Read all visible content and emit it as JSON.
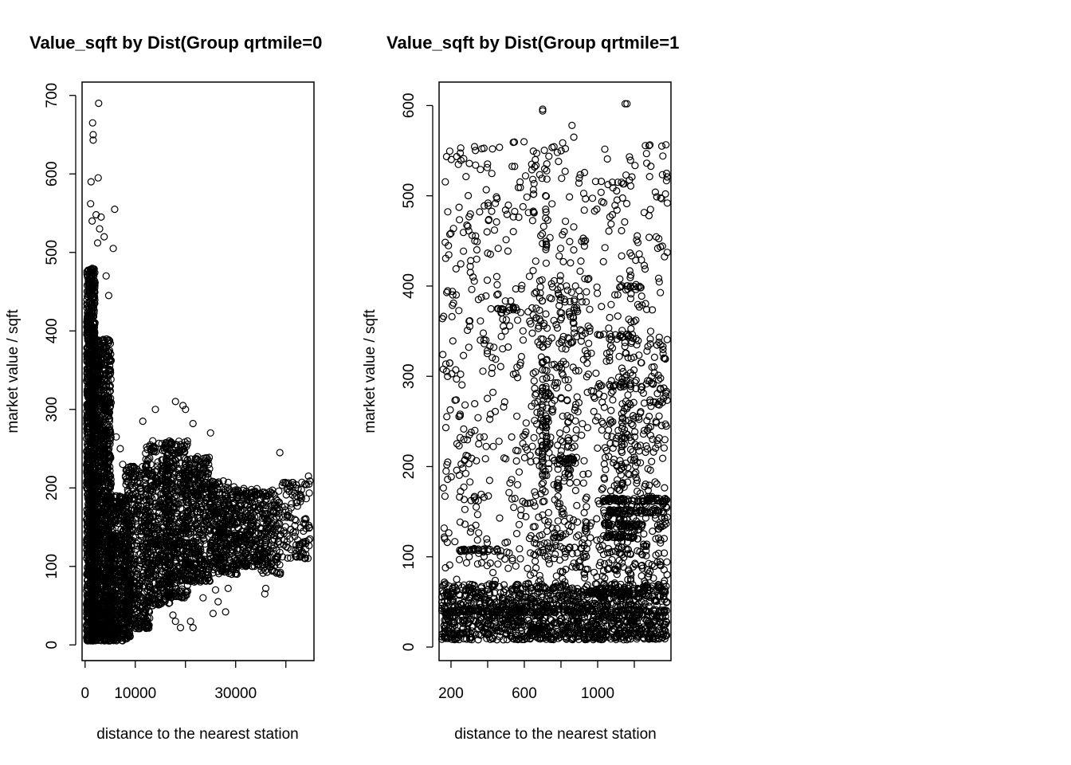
{
  "chart_data": [
    {
      "type": "scatter",
      "title": "Value_sqft by Dist(Group qrtmile=0",
      "xlabel": "distance to the nearest station",
      "ylabel": "market value / sqft",
      "xlim": [
        -600,
        45600
      ],
      "ylim": [
        -20,
        717
      ],
      "xticks": [
        0,
        10000,
        20000,
        30000,
        40000
      ],
      "xtick_labels": [
        "0",
        "10000",
        "",
        "30000",
        ""
      ],
      "yticks": [
        0,
        100,
        200,
        300,
        400,
        500,
        600,
        700
      ],
      "ytick_labels": [
        "0",
        "100",
        "200",
        "300",
        "400",
        "500",
        "600",
        "700"
      ],
      "marker": "open-circle",
      "grid": false,
      "clusters": [
        {
          "x": [
            300,
            2000
          ],
          "y": [
            5,
            480
          ],
          "n": 1300
        },
        {
          "x": [
            1800,
            5200
          ],
          "y": [
            5,
            390
          ],
          "n": 1100
        },
        {
          "x": [
            4500,
            9000
          ],
          "y": [
            5,
            190
          ],
          "n": 600
        },
        {
          "x": [
            8000,
            13000
          ],
          "y": [
            20,
            230
          ],
          "n": 420
        },
        {
          "x": [
            12000,
            17000
          ],
          "y": [
            50,
            260
          ],
          "n": 420
        },
        {
          "x": [
            16000,
            20500
          ],
          "y": [
            60,
            260
          ],
          "n": 420
        },
        {
          "x": [
            20000,
            25000
          ],
          "y": [
            80,
            240
          ],
          "n": 380
        },
        {
          "x": [
            25000,
            30500
          ],
          "y": [
            90,
            210
          ],
          "n": 360
        },
        {
          "x": [
            30500,
            35000
          ],
          "y": [
            100,
            200
          ],
          "n": 220
        },
        {
          "x": [
            35000,
            39000
          ],
          "y": [
            90,
            200
          ],
          "n": 160
        },
        {
          "x": [
            39000,
            44800
          ],
          "y": [
            110,
            210
          ],
          "n": 110
        }
      ],
      "points": [
        [
          2700,
          690
        ],
        [
          1500,
          665
        ],
        [
          1600,
          650
        ],
        [
          1600,
          643
        ],
        [
          2600,
          595
        ],
        [
          1200,
          590
        ],
        [
          1100,
          562
        ],
        [
          5900,
          555
        ],
        [
          2200,
          548
        ],
        [
          3200,
          545
        ],
        [
          1400,
          540
        ],
        [
          2900,
          530
        ],
        [
          3800,
          520
        ],
        [
          2500,
          512
        ],
        [
          5600,
          505
        ],
        [
          4200,
          470
        ],
        [
          4700,
          445
        ],
        [
          6200,
          265
        ],
        [
          7000,
          250
        ],
        [
          7500,
          230
        ],
        [
          11500,
          285
        ],
        [
          14000,
          300
        ],
        [
          18000,
          310
        ],
        [
          19500,
          305
        ],
        [
          20000,
          300
        ],
        [
          21500,
          282
        ],
        [
          25000,
          270
        ],
        [
          38800,
          245
        ],
        [
          44500,
          215
        ],
        [
          43800,
          205
        ],
        [
          44000,
          160
        ],
        [
          43500,
          145
        ],
        [
          43200,
          130
        ],
        [
          44800,
          135
        ],
        [
          42800,
          112
        ],
        [
          36000,
          72
        ],
        [
          35800,
          65
        ],
        [
          17500,
          38
        ],
        [
          18000,
          30
        ],
        [
          19000,
          22
        ],
        [
          21000,
          30
        ],
        [
          21500,
          22
        ],
        [
          26000,
          70
        ],
        [
          28500,
          72
        ],
        [
          25500,
          40
        ],
        [
          28000,
          42
        ],
        [
          23500,
          60
        ],
        [
          26500,
          55
        ],
        [
          13500,
          50
        ],
        [
          12000,
          40
        ],
        [
          15500,
          70
        ],
        [
          16800,
          90
        ],
        [
          14500,
          110
        ]
      ]
    },
    {
      "type": "scatter",
      "title": "Value_sqft by Dist(Group qrtmile=1",
      "xlabel": "distance to the nearest station",
      "ylabel": "market value / sqft",
      "xlim": [
        135,
        1400
      ],
      "ylim": [
        -15,
        626
      ],
      "xticks": [
        200,
        400,
        600,
        800,
        1000,
        1200
      ],
      "xtick_labels": [
        "200",
        "",
        "600",
        "",
        "1000",
        ""
      ],
      "yticks": [
        0,
        100,
        200,
        300,
        400,
        500,
        600
      ],
      "ytick_labels": [
        "0",
        "100",
        "200",
        "300",
        "400",
        "500",
        "600"
      ],
      "marker": "open-circle",
      "grid": false,
      "clusters": [
        {
          "x": [
            150,
            1380
          ],
          "y": [
            8,
            70
          ],
          "n": 1200
        },
        {
          "x": [
            150,
            1380
          ],
          "y": [
            8,
            560
          ],
          "n": 900
        },
        {
          "x": [
            1020,
            1380
          ],
          "y": [
            60,
            350
          ],
          "n": 320
        },
        {
          "x": [
            650,
            950
          ],
          "y": [
            80,
            420
          ],
          "n": 260
        }
      ],
      "rows": [
        {
          "x": [
            240,
            460
          ],
          "y": 107,
          "n": 30
        },
        {
          "x": [
            1030,
            1380
          ],
          "y": 163,
          "n": 60
        },
        {
          "x": [
            1030,
            1380
          ],
          "y": 150,
          "n": 50
        },
        {
          "x": [
            1030,
            1260
          ],
          "y": 135,
          "n": 45
        },
        {
          "x": [
            1030,
            1200
          ],
          "y": 123,
          "n": 30
        },
        {
          "x": [
            880,
            1200
          ],
          "y": 60,
          "n": 50
        },
        {
          "x": [
            150,
            1380
          ],
          "y": 40,
          "n": 120
        },
        {
          "x": [
            760,
            880
          ],
          "y": 208,
          "n": 18
        },
        {
          "x": [
            1000,
            1150
          ],
          "y": 290,
          "n": 14
        },
        {
          "x": [
            1000,
            1200
          ],
          "y": 345,
          "n": 14
        },
        {
          "x": [
            450,
            580
          ],
          "y": 375,
          "n": 16
        },
        {
          "x": [
            1100,
            1240
          ],
          "y": 400,
          "n": 12
        }
      ],
      "columns": [
        {
          "x": 700,
          "y": [
            180,
            310
          ],
          "n": 26
        },
        {
          "x": 720,
          "y": [
            220,
            310
          ],
          "n": 20
        },
        {
          "x": 840,
          "y": [
            190,
            240
          ],
          "n": 12
        },
        {
          "x": 1130,
          "y": [
            100,
            300
          ],
          "n": 22
        },
        {
          "x": 1180,
          "y": [
            200,
            420
          ],
          "n": 16
        },
        {
          "x": 720,
          "y": [
            420,
            520
          ],
          "n": 12
        },
        {
          "x": 650,
          "y": [
            480,
            530
          ],
          "n": 8
        },
        {
          "x": 870,
          "y": [
            330,
            395
          ],
          "n": 10
        }
      ],
      "points": [
        [
          700,
          596
        ],
        [
          700,
          594
        ],
        [
          1150,
          602
        ],
        [
          1160,
          602
        ],
        [
          860,
          578
        ],
        [
          870,
          565
        ],
        [
          780,
          548
        ],
        [
          1350,
          555
        ],
        [
          640,
          535
        ],
        [
          660,
          540
        ],
        [
          1370,
          502
        ],
        [
          1380,
          492
        ],
        [
          1020,
          516
        ],
        [
          1080,
          515
        ],
        [
          1110,
          515
        ],
        [
          1130,
          515
        ],
        [
          1280,
          478
        ],
        [
          330,
          450
        ],
        [
          320,
          410
        ],
        [
          230,
          297
        ],
        [
          250,
          258
        ],
        [
          250,
          232
        ],
        [
          300,
          235
        ],
        [
          310,
          238
        ],
        [
          330,
          240
        ],
        [
          270,
          230
        ],
        [
          380,
          340
        ],
        [
          360,
          340
        ],
        [
          390,
          340
        ],
        [
          190,
          30
        ],
        [
          200,
          20
        ],
        [
          215,
          14
        ],
        [
          230,
          18
        ],
        [
          250,
          48
        ],
        [
          180,
          50
        ],
        [
          170,
          42
        ],
        [
          195,
          55
        ]
      ]
    }
  ]
}
